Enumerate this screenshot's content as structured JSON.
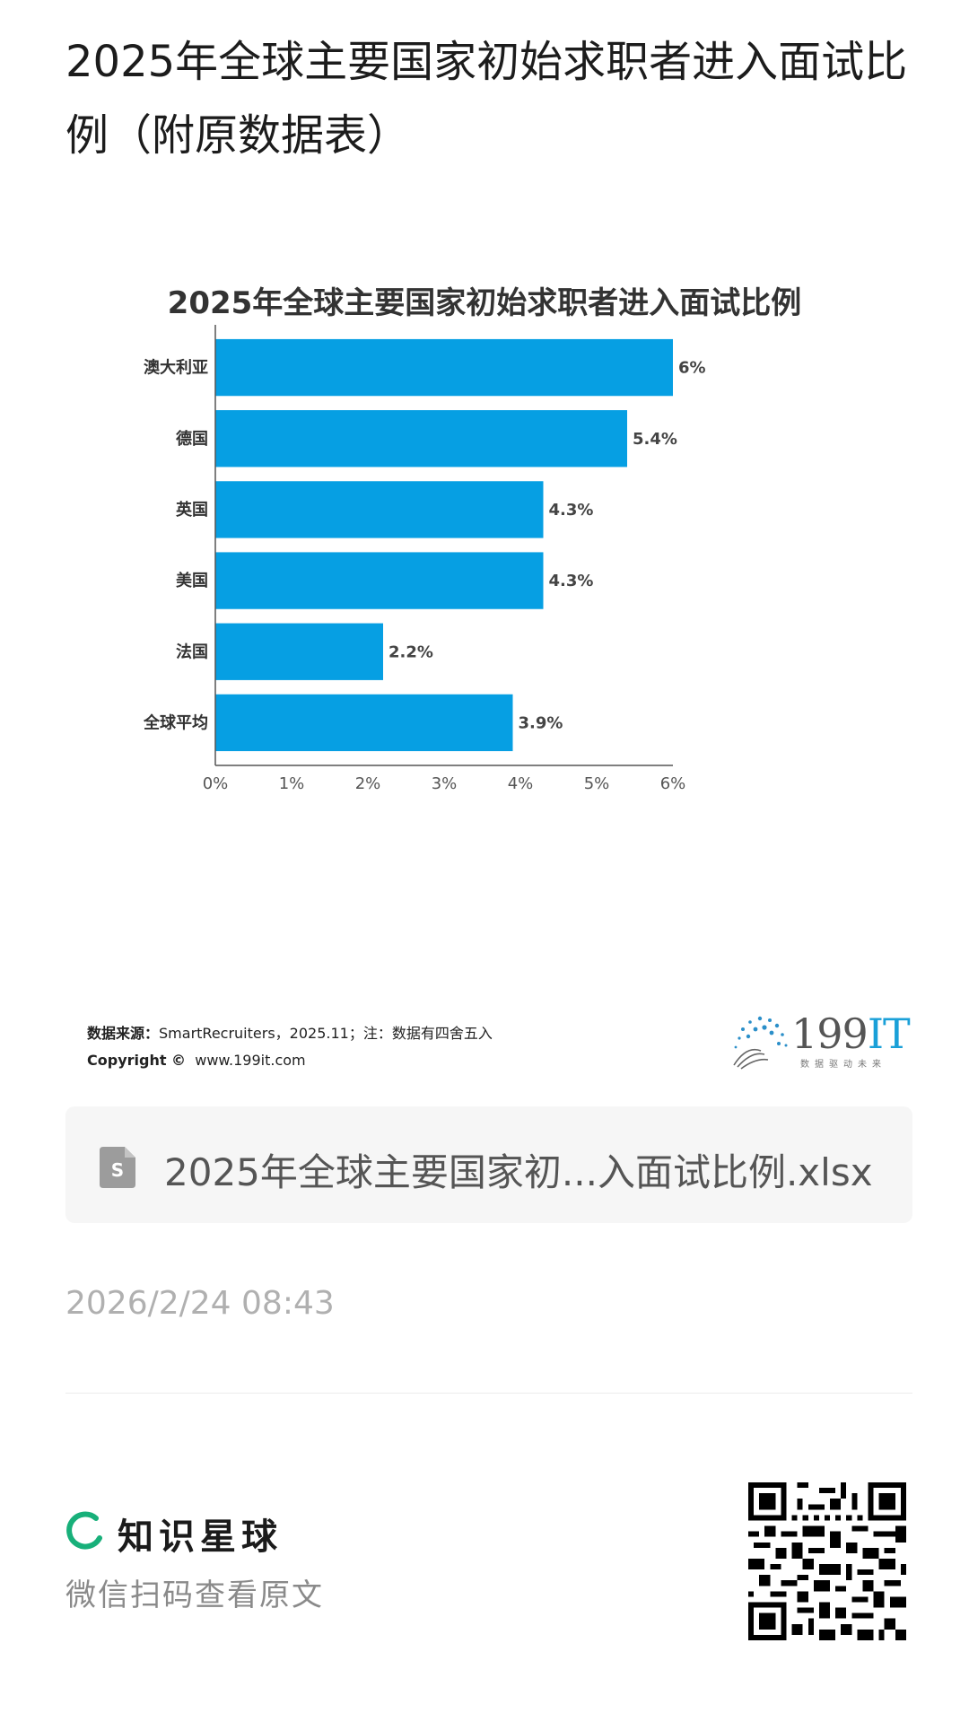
{
  "page": {
    "title": "2025年全球主要国家初始求职者进入面试比例（附原数据表）"
  },
  "chart_data": {
    "type": "bar",
    "orientation": "horizontal",
    "title": "2025年全球主要国家初始求职者进入面试比例",
    "categories": [
      "澳大利亚",
      "德国",
      "英国",
      "美国",
      "法国",
      "全球平均"
    ],
    "values": [
      6,
      5.4,
      4.3,
      4.3,
      2.2,
      3.9
    ],
    "value_labels": [
      "6%",
      "5.4%",
      "4.3%",
      "4.3%",
      "2.2%",
      "3.9%"
    ],
    "xlim": [
      0,
      6
    ],
    "x_ticks": [
      "0%",
      "1%",
      "2%",
      "3%",
      "4%",
      "5%",
      "6%"
    ],
    "xlabel": "",
    "ylabel": "",
    "bar_color": "#069fe3",
    "grid": false,
    "legend": "none"
  },
  "source": {
    "label": "数据来源：",
    "text": "SmartRecruiters，2025.11；注：数据有四舍五入",
    "copyright_label": "Copyright ©",
    "copyright_site": "www.199it.com"
  },
  "logo": {
    "text_main": "199",
    "text_accent": "IT",
    "tagline": "数据驱动未来"
  },
  "attachment": {
    "icon": "spreadsheet-file-icon",
    "filename": "2025年全球主要国家初...入面试比例.xlsx"
  },
  "post": {
    "timestamp": "2026/2/24 08:43"
  },
  "footer": {
    "brand_name": "知识星球",
    "brand_color": "#18b07a",
    "scan_hint": "微信扫码查看原文"
  }
}
